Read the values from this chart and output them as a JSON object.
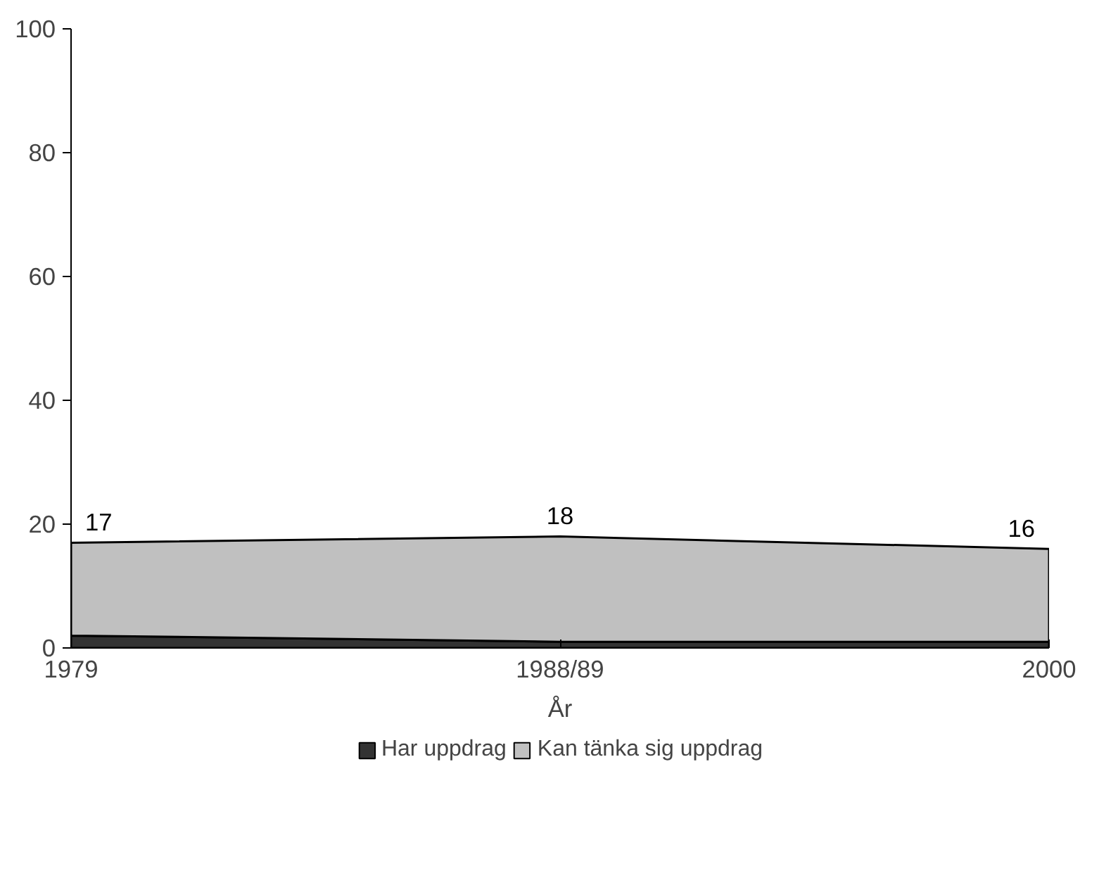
{
  "chart_data": {
    "type": "area",
    "stacked": true,
    "xlabel": "År",
    "categories": [
      "1979",
      "1988/89",
      "2000"
    ],
    "series": [
      {
        "name": "Har uppdrag",
        "color": "#333333",
        "values": [
          2,
          1,
          1
        ]
      },
      {
        "name": "Kan tänka sig uppdrag",
        "color": "#c0c0c0",
        "values": [
          15,
          17,
          15
        ]
      }
    ],
    "totals": [
      "17",
      "18",
      "16"
    ],
    "ylim": [
      0,
      100
    ],
    "yticks": [
      0,
      20,
      40,
      60,
      80,
      100
    ],
    "grid": false,
    "legend": "bottom"
  }
}
